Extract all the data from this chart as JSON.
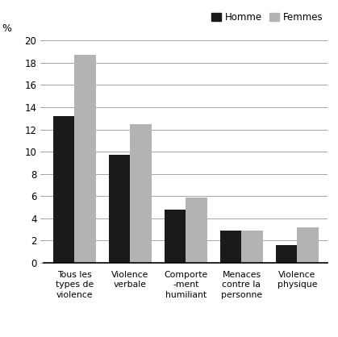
{
  "categories": [
    "Tous les\ntypes de\nviolence",
    "Violence\nverbale",
    "Comporte\n-ment\nhumiliant",
    "Menaces\ncontre la\npersonne",
    "Violence\nphysique"
  ],
  "homme_values": [
    13.2,
    9.7,
    4.8,
    2.9,
    1.6
  ],
  "femmes_values": [
    18.7,
    12.5,
    5.9,
    2.9,
    3.2
  ],
  "homme_color": "#1a1a1a",
  "femmes_color": "#b3b3b3",
  "ylabel": "%",
  "ylim": [
    0,
    20
  ],
  "yticks": [
    0,
    2,
    4,
    6,
    8,
    10,
    12,
    14,
    16,
    18,
    20
  ],
  "legend_homme": "Homme",
  "legend_femmes": "Femmes",
  "bar_width": 0.38
}
